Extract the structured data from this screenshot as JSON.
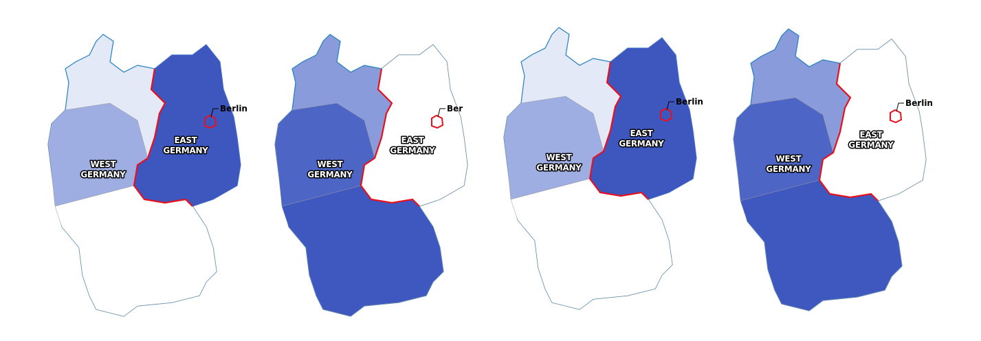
{
  "maps": [
    {
      "west_label": [
        "WEST",
        "GERMANY"
      ],
      "east_label": [
        "EAST",
        "GERMANY"
      ],
      "city_label": "Berlin"
    },
    {
      "west_label": [
        "WEST",
        "GERMANY"
      ],
      "east_label": [
        "EAST",
        "GERMANY"
      ],
      "city_label": "Ber"
    },
    {
      "west_label": [
        "WEST",
        "GERMANY"
      ],
      "east_label": [
        "EAST",
        "GERMANY"
      ],
      "city_label": "Berlin"
    },
    {
      "west_label": [
        "WEST",
        "GERMANY"
      ],
      "east_label": [
        "EAST",
        "GERMANY"
      ],
      "city_label": "Berlin"
    }
  ]
}
